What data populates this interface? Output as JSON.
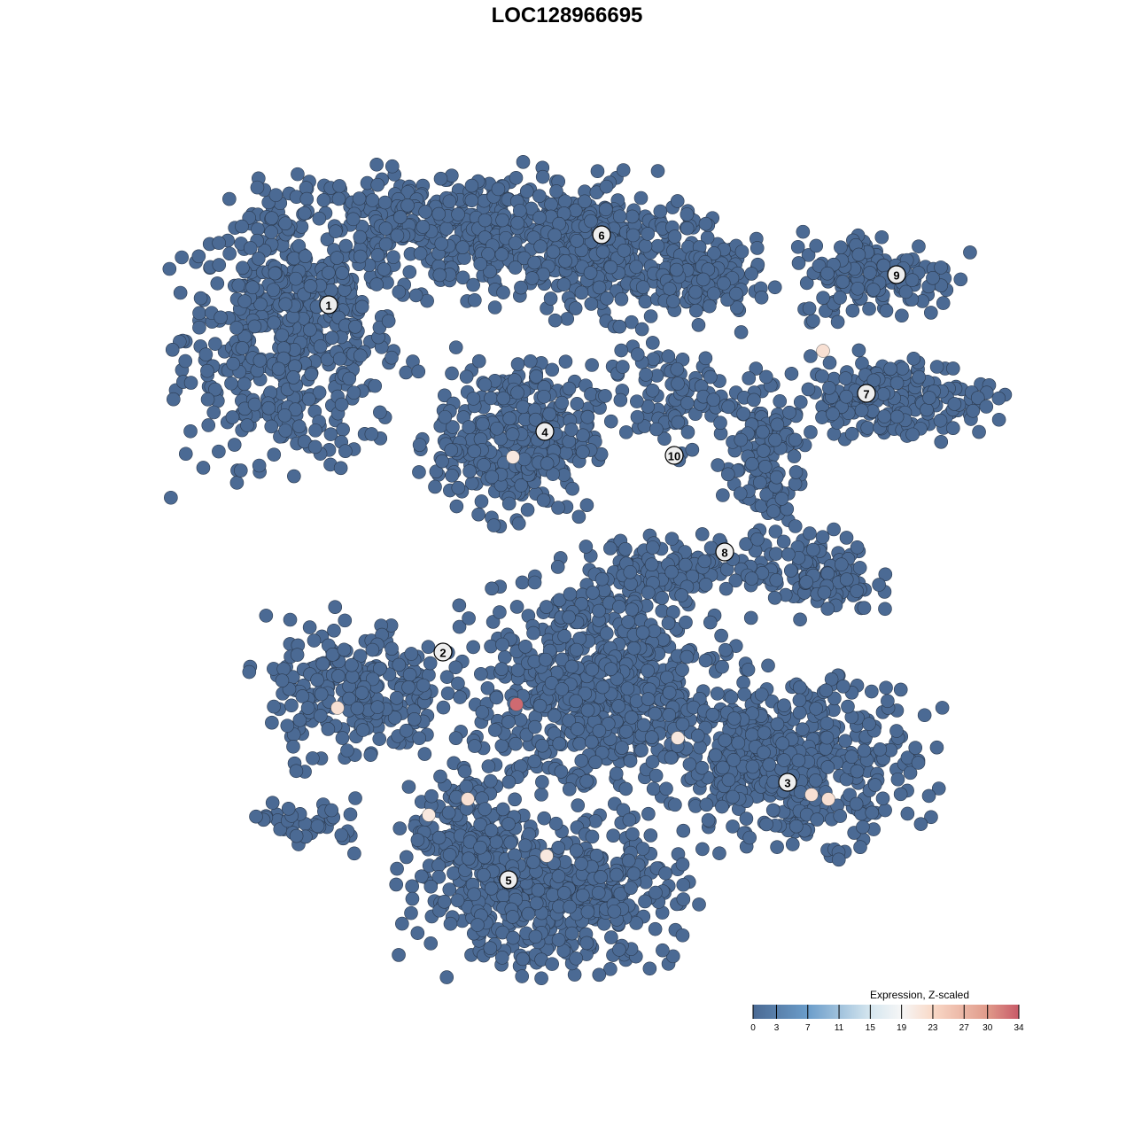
{
  "chart_data": {
    "type": "scatter",
    "title": "LOC128966695",
    "xlabel": "",
    "ylabel": "",
    "axes_visible": false,
    "grid": false,
    "point_color_default": "#4b6a94",
    "point_outline": "#2b3a4f",
    "background_cells_expression": 0,
    "cell_groups": [
      {
        "cx": 13,
        "cy": 72,
        "sx": 11,
        "sy": 13,
        "n": 500
      },
      {
        "cx": 32,
        "cy": 84,
        "sx": 20,
        "sy": 6,
        "n": 500
      },
      {
        "cx": 50,
        "cy": 81,
        "sx": 12,
        "sy": 6,
        "n": 260
      },
      {
        "cx": 60,
        "cy": 78,
        "sx": 6,
        "sy": 4,
        "n": 100
      },
      {
        "cx": 38,
        "cy": 60.5,
        "sx": 8,
        "sy": 7.5,
        "n": 360
      },
      {
        "cx": 79,
        "cy": 79,
        "sx": 8,
        "sy": 4.5,
        "n": 150
      },
      {
        "cx": 80,
        "cy": 65,
        "sx": 11,
        "sy": 4,
        "n": 200
      },
      {
        "cx": 56,
        "cy": 65,
        "sx": 7,
        "sy": 5,
        "n": 100
      },
      {
        "cx": 66,
        "cy": 58,
        "sx": 4,
        "sy": 8,
        "n": 120
      },
      {
        "cx": 72,
        "cy": 45,
        "sx": 6,
        "sy": 4,
        "n": 120
      },
      {
        "cx": 56,
        "cy": 46,
        "sx": 9,
        "sy": 3,
        "n": 120
      },
      {
        "cx": 20,
        "cy": 32,
        "sx": 9,
        "sy": 7,
        "n": 250
      },
      {
        "cx": 48,
        "cy": 32,
        "sx": 13,
        "sy": 11,
        "n": 700
      },
      {
        "cx": 70,
        "cy": 24,
        "sx": 12,
        "sy": 8,
        "n": 450
      },
      {
        "cx": 42,
        "cy": 9,
        "sx": 13,
        "sy": 7,
        "n": 500
      },
      {
        "cx": 33,
        "cy": 16,
        "sx": 6,
        "sy": 6,
        "n": 150
      },
      {
        "cx": 15,
        "cy": 17,
        "sx": 5,
        "sy": 2.5,
        "n": 40
      }
    ],
    "expressed_cells": [
      {
        "x": 72.9,
        "y": 70.4,
        "value": 22
      },
      {
        "x": 37.9,
        "y": 58.4,
        "value": 21
      },
      {
        "x": 18.1,
        "y": 30.1,
        "value": 22
      },
      {
        "x": 38.3,
        "y": 30.5,
        "value": 33
      },
      {
        "x": 56.5,
        "y": 26.7,
        "value": 21
      },
      {
        "x": 32.8,
        "y": 19.8,
        "value": 22
      },
      {
        "x": 28.4,
        "y": 18.0,
        "value": 21
      },
      {
        "x": 41.7,
        "y": 13.4,
        "value": 21
      },
      {
        "x": 71.6,
        "y": 20.3,
        "value": 22
      },
      {
        "x": 73.5,
        "y": 19.8,
        "value": 22
      }
    ],
    "cluster_labels": [
      {
        "label": "1",
        "x": 17.1,
        "y": 75.6
      },
      {
        "label": "2",
        "x": 30.0,
        "y": 36.4
      },
      {
        "label": "3",
        "x": 68.9,
        "y": 21.7
      },
      {
        "label": "4",
        "x": 41.5,
        "y": 61.3
      },
      {
        "label": "5",
        "x": 37.4,
        "y": 10.7
      },
      {
        "label": "6",
        "x": 47.9,
        "y": 83.5
      },
      {
        "label": "7",
        "x": 77.8,
        "y": 65.6
      },
      {
        "label": "8",
        "x": 61.8,
        "y": 47.7
      },
      {
        "label": "9",
        "x": 81.2,
        "y": 79.0
      },
      {
        "label": "10",
        "x": 56.1,
        "y": 58.6
      }
    ],
    "colorbar": {
      "title": "Expression, Z-scaled",
      "min": 0,
      "max": 34,
      "ticks": [
        "0",
        "3",
        "7",
        "11",
        "15",
        "19",
        "23",
        "27",
        "30",
        "34"
      ],
      "stops": [
        {
          "v": 0,
          "color": "#4b6a94"
        },
        {
          "v": 7,
          "color": "#6b9dca"
        },
        {
          "v": 15,
          "color": "#d5e6ef"
        },
        {
          "v": 19,
          "color": "#f6f6f6"
        },
        {
          "v": 23,
          "color": "#f9d9c7"
        },
        {
          "v": 30,
          "color": "#e09a8a"
        },
        {
          "v": 34,
          "color": "#c85a68"
        }
      ],
      "placement": "bottom-right"
    }
  }
}
